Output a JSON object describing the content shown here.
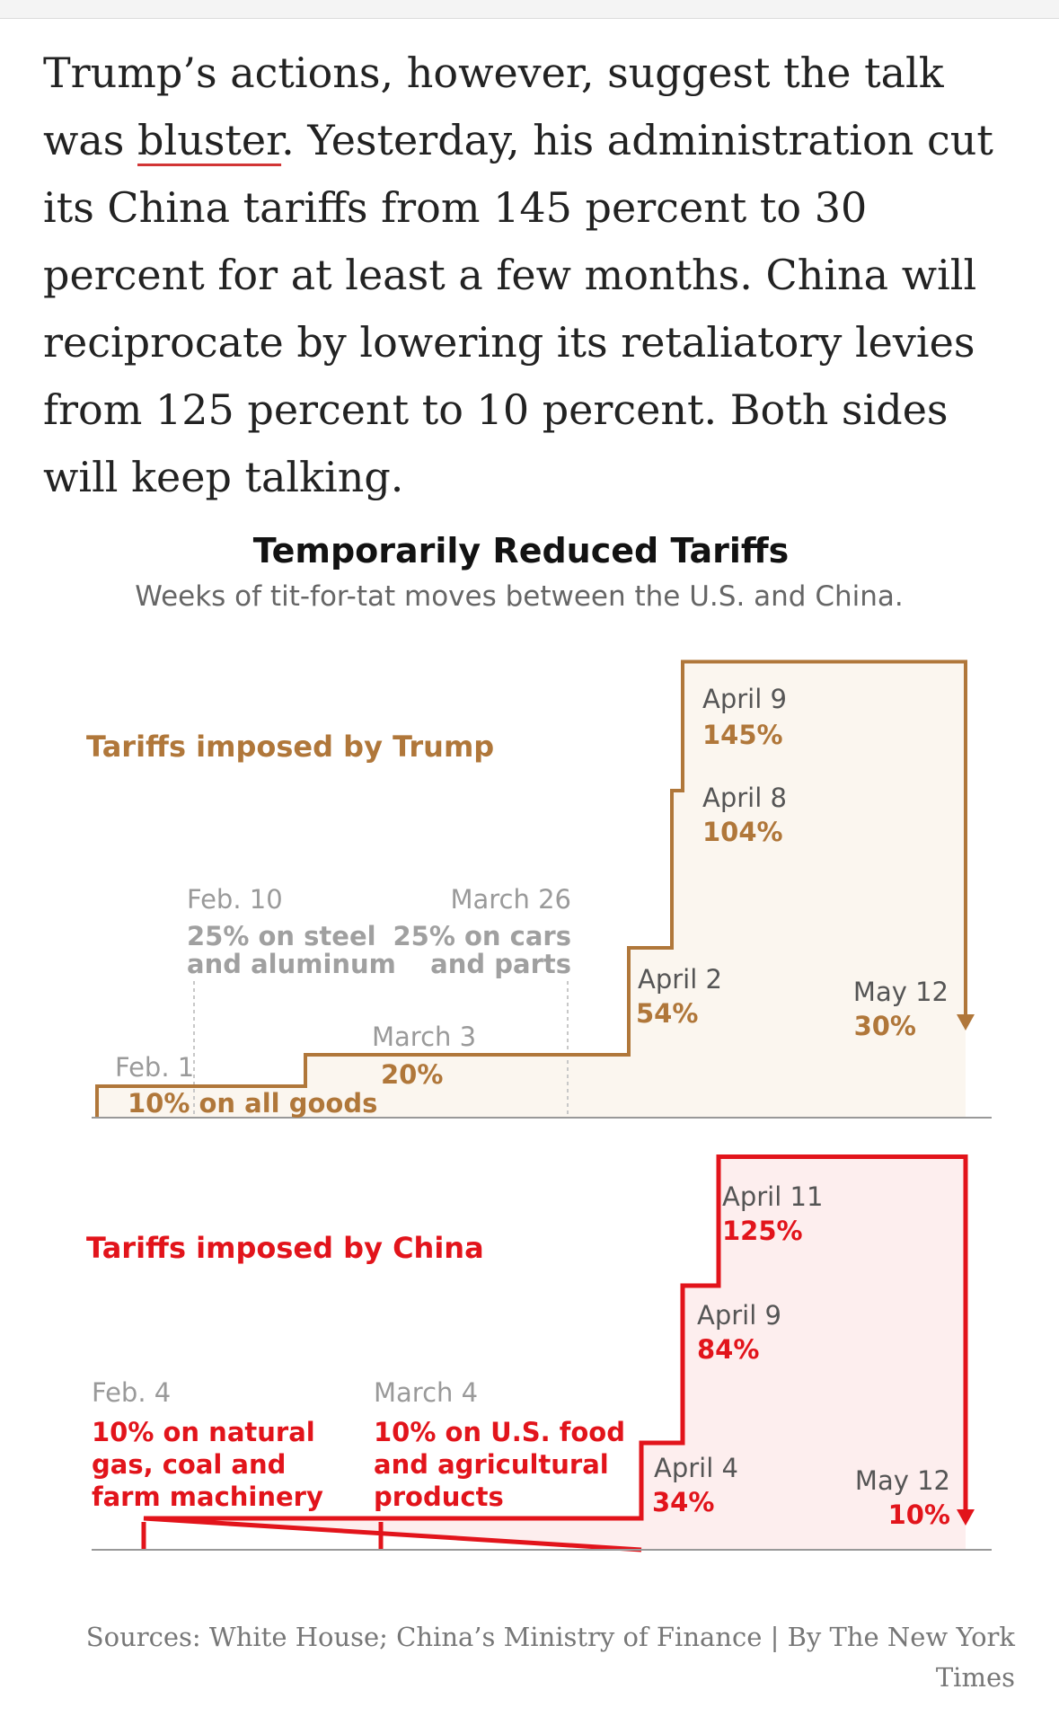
{
  "article": {
    "text_before": "Trump’s actions, however, suggest the talk was ",
    "link_text": "bluster",
    "text_after": ". Yesterday, his administration cut its China tariffs from 145 percent to 30 percent for at least a few months. China will reciprocate by lowering its retaliatory levies from 125 percent to 10 percent. Both sides will keep talking."
  },
  "chart_data": {
    "type": "step",
    "title": "Temporarily Reduced Tariffs",
    "subtitle": "Weeks of tit-for-tat moves between the U.S. and China.",
    "series": [
      {
        "name": "Tariffs imposed by Trump",
        "color": "#b0773a",
        "fill": "#fbf6ef",
        "points": [
          {
            "date": "Feb. 1",
            "value": 10,
            "value_label": "",
            "note": "10% on all goods"
          },
          {
            "date": "Feb. 10",
            "value": 10,
            "value_label": "",
            "note": "25% on steel and aluminum"
          },
          {
            "date": "March 3",
            "value": 20,
            "value_label": "20%",
            "note": ""
          },
          {
            "date": "March 26",
            "value": 20,
            "value_label": "",
            "note": "25% on cars and parts"
          },
          {
            "date": "April 2",
            "value": 54,
            "value_label": "54%",
            "note": ""
          },
          {
            "date": "April 8",
            "value": 104,
            "value_label": "104%",
            "note": ""
          },
          {
            "date": "April 9",
            "value": 145,
            "value_label": "145%",
            "note": ""
          },
          {
            "date": "May 12",
            "value": 30,
            "value_label": "30%",
            "note": ""
          }
        ]
      },
      {
        "name": "Tariffs imposed by China",
        "color": "#e2141b",
        "fill": "#fdeeee",
        "points": [
          {
            "date": "Feb. 4",
            "value": 10,
            "value_label": "",
            "note": "10% on natural gas, coal and farm machinery"
          },
          {
            "date": "March 4",
            "value": 10,
            "value_label": "",
            "note": "10% on U.S. food and agricultural products"
          },
          {
            "date": "April 4",
            "value": 34,
            "value_label": "34%",
            "note": ""
          },
          {
            "date": "April 9",
            "value": 84,
            "value_label": "84%",
            "note": ""
          },
          {
            "date": "April 11",
            "value": 125,
            "value_label": "125%",
            "note": ""
          },
          {
            "date": "May 12",
            "value": 10,
            "value_label": "10%",
            "note": ""
          }
        ]
      }
    ],
    "trump_labels": {
      "title": "Tariffs imposed by Trump",
      "feb1_date": "Feb. 1",
      "feb1_note": "10% on all goods",
      "feb10_date": "Feb. 10",
      "feb10_note_1": "25% on steel",
      "feb10_note_2": "and aluminum",
      "mar3_date": "March 3",
      "mar3_value": "20%",
      "mar26_date": "March 26",
      "mar26_note_1": "25% on cars",
      "mar26_note_2": "and parts",
      "apr2_date": "April 2",
      "apr2_value": "54%",
      "apr8_date": "April 8",
      "apr8_value": "104%",
      "apr9_date": "April 9",
      "apr9_value": "145%",
      "may12_date": "May 12",
      "may12_value": "30%"
    },
    "china_labels": {
      "title": "Tariffs imposed by China",
      "feb4_date": "Feb. 4",
      "feb4_note_1": "10% on natural",
      "feb4_note_2": "gas, coal and",
      "feb4_note_3": "farm machinery",
      "mar4_date": "March 4",
      "mar4_note_1": "10% on U.S. food",
      "mar4_note_2": "and agricultural",
      "mar4_note_3": "products",
      "apr4_date": "April 4",
      "apr4_value": "34%",
      "apr9_date": "April 9",
      "apr9_value": "84%",
      "apr11_date": "April 11",
      "apr11_value": "125%",
      "may12_date": "May 12",
      "may12_value": "10%"
    },
    "source": "Sources: White House; China’s Ministry of Finance | By The New York Times"
  },
  "colors": {
    "trump": "#b0773a",
    "china": "#e2141b",
    "axis": "#999999",
    "date_gray": "#9a9a9a",
    "note_gray": "#a0a0a0"
  }
}
